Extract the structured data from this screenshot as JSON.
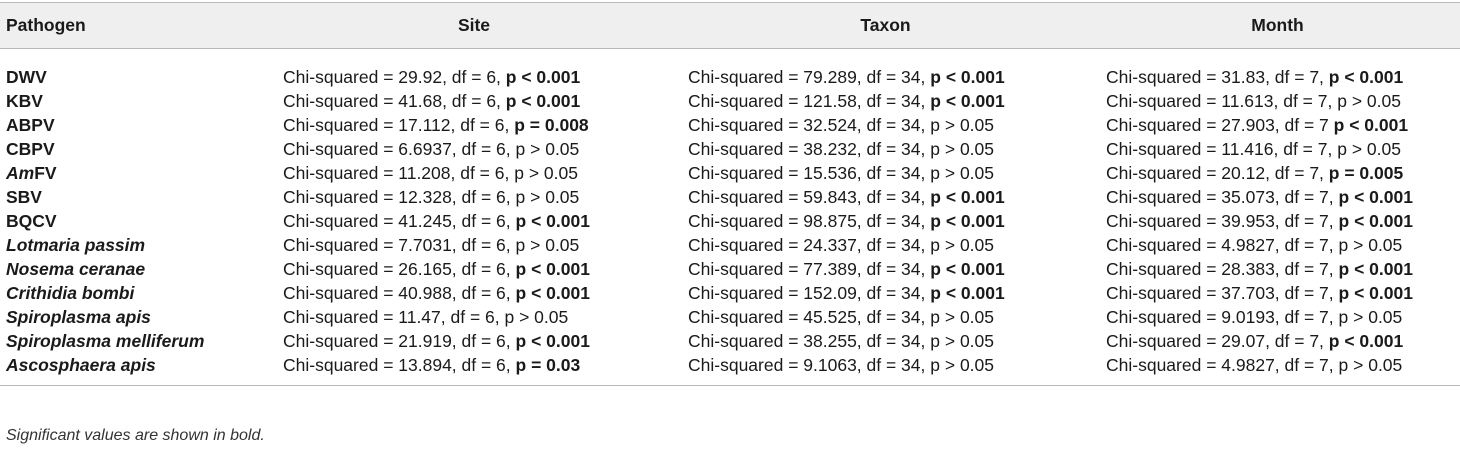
{
  "table": {
    "headers": [
      "Pathogen",
      "Site",
      "Taxon",
      "Month"
    ],
    "rows": [
      {
        "pathogen": [
          {
            "t": "DWV"
          }
        ],
        "site": {
          "text": "Chi-squared = 29.92, df = 6,",
          "p": "p < 0.001",
          "sig": true
        },
        "taxon": {
          "text": "Chi-squared = 79.289, df = 34,",
          "p": "p < 0.001",
          "sig": true
        },
        "month": {
          "text": "Chi-squared = 31.83, df = 7,",
          "p": "p < 0.001",
          "sig": true
        }
      },
      {
        "pathogen": [
          {
            "t": "KBV"
          }
        ],
        "site": {
          "text": "Chi-squared = 41.68, df = 6,",
          "p": "p < 0.001",
          "sig": true
        },
        "taxon": {
          "text": "Chi-squared = 121.58, df = 34,",
          "p": "p < 0.001",
          "sig": true
        },
        "month": {
          "text": "Chi-squared = 11.613, df = 7,",
          "p": "p > 0.05",
          "sig": false
        }
      },
      {
        "pathogen": [
          {
            "t": "ABPV"
          }
        ],
        "site": {
          "text": "Chi-squared = 17.112, df = 6,",
          "p": "p = 0.008",
          "sig": true
        },
        "taxon": {
          "text": "Chi-squared = 32.524, df = 34,",
          "p": "p > 0.05",
          "sig": false
        },
        "month": {
          "text": "Chi-squared = 27.903, df = 7",
          "p": "p < 0.001",
          "sig": true
        }
      },
      {
        "pathogen": [
          {
            "t": "CBPV"
          }
        ],
        "site": {
          "text": "Chi-squared = 6.6937, df = 6,",
          "p": "p > 0.05",
          "sig": false
        },
        "taxon": {
          "text": "Chi-squared = 38.232, df = 34,",
          "p": "p > 0.05",
          "sig": false
        },
        "month": {
          "text": "Chi-squared = 11.416, df = 7,",
          "p": "p > 0.05",
          "sig": false
        }
      },
      {
        "pathogen": [
          {
            "t": "Am",
            "i": true
          },
          {
            "t": "FV"
          }
        ],
        "site": {
          "text": "Chi-squared = 11.208, df = 6,",
          "p": "p > 0.05",
          "sig": false
        },
        "taxon": {
          "text": "Chi-squared = 15.536, df = 34,",
          "p": "p > 0.05",
          "sig": false
        },
        "month": {
          "text": "Chi-squared = 20.12, df = 7,",
          "p": "p = 0.005",
          "sig": true
        }
      },
      {
        "pathogen": [
          {
            "t": "SBV"
          }
        ],
        "site": {
          "text": "Chi-squared = 12.328, df = 6,",
          "p": "p > 0.05",
          "sig": false
        },
        "taxon": {
          "text": "Chi-squared = 59.843, df = 34,",
          "p": "p < 0.001",
          "sig": true
        },
        "month": {
          "text": "Chi-squared = 35.073, df = 7,",
          "p": "p < 0.001",
          "sig": true
        }
      },
      {
        "pathogen": [
          {
            "t": "BQCV"
          }
        ],
        "site": {
          "text": "Chi-squared = 41.245, df = 6,",
          "p": "p < 0.001",
          "sig": true
        },
        "taxon": {
          "text": "Chi-squared = 98.875, df = 34,",
          "p": "p < 0.001",
          "sig": true
        },
        "month": {
          "text": "Chi-squared = 39.953, df = 7,",
          "p": "p < 0.001",
          "sig": true
        }
      },
      {
        "pathogen": [
          {
            "t": "Lotmaria passim",
            "i": true
          }
        ],
        "site": {
          "text": "Chi-squared = 7.7031, df = 6,",
          "p": "p > 0.05",
          "sig": false
        },
        "taxon": {
          "text": "Chi-squared = 24.337, df = 34,",
          "p": "p > 0.05",
          "sig": false
        },
        "month": {
          "text": "Chi-squared = 4.9827, df = 7,",
          "p": "p > 0.05",
          "sig": false
        }
      },
      {
        "pathogen": [
          {
            "t": "Nosema ceranae",
            "i": true
          }
        ],
        "site": {
          "text": "Chi-squared = 26.165, df = 6,",
          "p": "p < 0.001",
          "sig": true
        },
        "taxon": {
          "text": "Chi-squared = 77.389, df = 34,",
          "p": "p < 0.001",
          "sig": true
        },
        "month": {
          "text": "Chi-squared = 28.383, df = 7,",
          "p": "p < 0.001",
          "sig": true
        }
      },
      {
        "pathogen": [
          {
            "t": "Crithidia bombi",
            "i": true
          }
        ],
        "site": {
          "text": "Chi-squared = 40.988, df = 6,",
          "p": "p < 0.001",
          "sig": true
        },
        "taxon": {
          "text": "Chi-squared = 152.09, df = 34,",
          "p": "p < 0.001",
          "sig": true
        },
        "month": {
          "text": "Chi-squared = 37.703, df = 7,",
          "p": "p < 0.001",
          "sig": true
        }
      },
      {
        "pathogen": [
          {
            "t": "Spiroplasma apis",
            "i": true
          }
        ],
        "site": {
          "text": "Chi-squared = 11.47, df = 6,",
          "p": "p > 0.05",
          "sig": false
        },
        "taxon": {
          "text": "Chi-squared = 45.525, df = 34,",
          "p": "p > 0.05",
          "sig": false
        },
        "month": {
          "text": "Chi-squared = 9.0193, df = 7,",
          "p": "p > 0.05",
          "sig": false
        }
      },
      {
        "pathogen": [
          {
            "t": "Spiroplasma melliferum",
            "i": true
          }
        ],
        "site": {
          "text": "Chi-squared = 21.919, df = 6,",
          "p": "p < 0.001",
          "sig": true
        },
        "taxon": {
          "text": "Chi-squared = 38.255, df = 34,",
          "p": "p > 0.05",
          "sig": false
        },
        "month": {
          "text": "Chi-squared = 29.07, df = 7,",
          "p": "p < 0.001",
          "sig": true
        }
      },
      {
        "pathogen": [
          {
            "t": "Ascosphaera apis",
            "i": true
          }
        ],
        "site": {
          "text": "Chi-squared = 13.894, df = 6,",
          "p": "p = 0.03",
          "sig": true
        },
        "taxon": {
          "text": "Chi-squared = 9.1063, df = 34,",
          "p": "p > 0.05",
          "sig": false
        },
        "month": {
          "text": "Chi-squared = 4.9827, df = 7,",
          "p": "p > 0.05",
          "sig": false
        }
      }
    ]
  },
  "footnote": "Significant values are shown in bold."
}
